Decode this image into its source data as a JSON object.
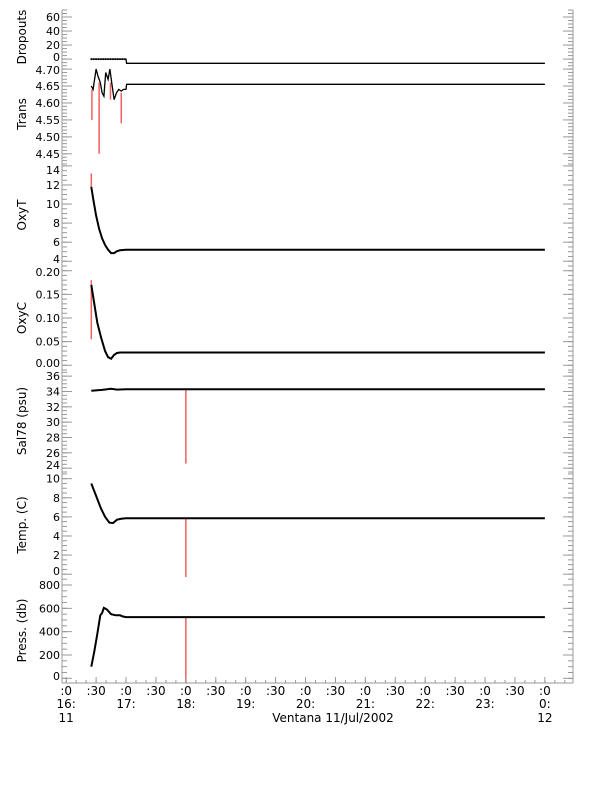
{
  "chart_data": {
    "type": "line",
    "title": "",
    "xlabel": "Ventana 11/Jul/2002",
    "xlim": [
      15.93,
      24.47
    ],
    "x_unit": "hours of 11/Jul/2002",
    "x_ticks": [
      {
        "x": 16.0,
        "top": ":0",
        "mid": "16:",
        "bottom": "11"
      },
      {
        "x": 16.5,
        "top": ":30",
        "mid": "",
        "bottom": ""
      },
      {
        "x": 17.0,
        "top": ":0",
        "mid": "17:",
        "bottom": ""
      },
      {
        "x": 17.5,
        "top": ":30",
        "mid": "",
        "bottom": ""
      },
      {
        "x": 18.0,
        "top": ":0",
        "mid": "18:",
        "bottom": ""
      },
      {
        "x": 18.5,
        "top": ":30",
        "mid": "",
        "bottom": ""
      },
      {
        "x": 19.0,
        "top": ":0",
        "mid": "19:",
        "bottom": ""
      },
      {
        "x": 19.5,
        "top": ":30",
        "mid": "",
        "bottom": ""
      },
      {
        "x": 20.0,
        "top": ":0",
        "mid": "20:",
        "bottom": ""
      },
      {
        "x": 20.5,
        "top": ":30",
        "mid": "",
        "bottom": ""
      },
      {
        "x": 21.0,
        "top": ":0",
        "mid": "21:",
        "bottom": ""
      },
      {
        "x": 21.5,
        "top": ":30",
        "mid": "",
        "bottom": ""
      },
      {
        "x": 22.0,
        "top": ":0",
        "mid": "22:",
        "bottom": ""
      },
      {
        "x": 22.5,
        "top": ":30",
        "mid": "",
        "bottom": ""
      },
      {
        "x": 23.0,
        "top": ":0",
        "mid": "23:",
        "bottom": ""
      },
      {
        "x": 23.5,
        "top": ":30",
        "mid": "",
        "bottom": ""
      },
      {
        "x": 24.0,
        "top": ":0",
        "mid": "0:",
        "bottom": "12"
      }
    ],
    "colors": {
      "line": "#000000",
      "raw": "#f06060"
    },
    "grid": false,
    "panels": [
      {
        "ylabel": "Dropouts",
        "ylim": [
          -7,
          70
        ],
        "yticks": [
          "0",
          "20",
          "40",
          "60"
        ],
        "ytick_values": [
          0,
          20,
          40,
          60
        ],
        "minor": 5,
        "series": {
          "x": [
            16.42,
            16.5,
            16.6,
            16.7,
            16.8,
            16.9,
            17.0,
            17.01,
            24.0
          ],
          "y": [
            0,
            0,
            0,
            0,
            0,
            0,
            0,
            -6,
            -6
          ]
        },
        "raw": []
      },
      {
        "ylabel": "Trans",
        "ylim": [
          4.42,
          4.715
        ],
        "yticks": [
          "4.45",
          "4.50",
          "4.55",
          "4.60",
          "4.65",
          "4.70"
        ],
        "ytick_values": [
          4.45,
          4.5,
          4.55,
          4.6,
          4.65,
          4.7
        ],
        "minor": 0.01,
        "series": {
          "x": [
            16.42,
            16.45,
            16.5,
            16.53,
            16.57,
            16.6,
            16.63,
            16.66,
            16.7,
            16.73,
            16.76,
            16.8,
            16.84,
            16.88,
            16.92,
            16.96,
            17.0,
            17.01,
            24.0
          ],
          "y": [
            4.65,
            4.64,
            4.7,
            4.68,
            4.66,
            4.63,
            4.62,
            4.69,
            4.67,
            4.7,
            4.66,
            4.61,
            4.63,
            4.64,
            4.635,
            4.64,
            4.64,
            4.655,
            4.655
          ]
        },
        "raw": [
          {
            "x": 16.43,
            "y0": 4.64,
            "y1": 4.55
          },
          {
            "x": 16.55,
            "y0": 4.66,
            "y1": 4.45
          },
          {
            "x": 16.74,
            "y0": 4.66,
            "y1": 4.61
          },
          {
            "x": 16.92,
            "y0": 4.63,
            "y1": 4.54
          }
        ]
      },
      {
        "ylabel": "OxyT",
        "ylim": [
          3.5,
          14.2
        ],
        "yticks": [
          "4",
          "6",
          "8",
          "10",
          "12",
          "14"
        ],
        "ytick_values": [
          4,
          6,
          8,
          10,
          12,
          14
        ],
        "minor": 0.5,
        "series": {
          "x": [
            16.42,
            16.45,
            16.5,
            16.55,
            16.6,
            16.65,
            16.7,
            16.75,
            16.8,
            16.85,
            16.9,
            17.0,
            24.0
          ],
          "y": [
            11.8,
            10.6,
            8.8,
            7.4,
            6.4,
            5.7,
            5.2,
            4.85,
            4.85,
            5.05,
            5.15,
            5.2,
            5.2
          ]
        },
        "raw": [
          {
            "x": 16.42,
            "y0": 11.8,
            "y1": 13.2
          }
        ]
      },
      {
        "ylabel": "OxyC",
        "ylim": [
          -0.01,
          0.21
        ],
        "yticks": [
          "0.00",
          "0.05",
          "0.10",
          "0.15",
          "0.20"
        ],
        "ytick_values": [
          0,
          0.05,
          0.1,
          0.15,
          0.2
        ],
        "minor": 0.01,
        "series": {
          "x": [
            16.42,
            16.47,
            16.52,
            16.58,
            16.65,
            16.7,
            16.75,
            16.8,
            16.85,
            16.9,
            17.0,
            24.0
          ],
          "y": [
            0.17,
            0.13,
            0.09,
            0.06,
            0.03,
            0.017,
            0.014,
            0.022,
            0.026,
            0.027,
            0.027,
            0.027
          ]
        },
        "raw": [
          {
            "x": 16.42,
            "y0": 0.055,
            "y1": 0.18
          }
        ]
      },
      {
        "ylabel": "Sal78 (psu)",
        "ylim": [
          23.5,
          36.8
        ],
        "yticks": [
          "24",
          "26",
          "28",
          "30",
          "32",
          "34",
          "36"
        ],
        "ytick_values": [
          24,
          26,
          28,
          30,
          32,
          34,
          36
        ],
        "minor": 0.5,
        "series": {
          "x": [
            16.42,
            16.6,
            16.75,
            16.85,
            17.0,
            24.0
          ],
          "y": [
            34.1,
            34.2,
            34.35,
            34.25,
            34.3,
            34.3
          ]
        },
        "raw": [
          {
            "x": 18.0,
            "y0": 34.3,
            "y1": 24.6
          }
        ]
      },
      {
        "ylabel": "Temp. (C)",
        "ylim": [
          -0.4,
          10.7
        ],
        "yticks": [
          "0",
          "2",
          "4",
          "6",
          "8",
          "10"
        ],
        "ytick_values": [
          0,
          2,
          4,
          6,
          8,
          10
        ],
        "minor": 0.5,
        "series": {
          "x": [
            16.42,
            16.5,
            16.58,
            16.65,
            16.72,
            16.78,
            16.85,
            16.92,
            17.0,
            24.0
          ],
          "y": [
            9.5,
            8.2,
            6.9,
            6.0,
            5.4,
            5.35,
            5.7,
            5.8,
            5.85,
            5.85
          ]
        },
        "raw": [
          {
            "x": 18.0,
            "y0": 5.85,
            "y1": -0.3
          }
        ]
      },
      {
        "ylabel": "Press. (db)",
        "ylim": [
          -40,
          860
        ],
        "yticks": [
          "0",
          "200",
          "400",
          "600",
          "800"
        ],
        "ytick_values": [
          0,
          200,
          400,
          600,
          800
        ],
        "minor": 50,
        "series": {
          "x": [
            16.42,
            16.47,
            16.52,
            16.57,
            16.6,
            16.63,
            16.68,
            16.75,
            16.83,
            16.9,
            16.95,
            17.0,
            24.0
          ],
          "y": [
            100,
            230,
            380,
            540,
            560,
            605,
            590,
            550,
            540,
            540,
            530,
            525,
            525
          ]
        },
        "raw": [
          {
            "x": 18.0,
            "y0": 525,
            "y1": -40
          }
        ]
      }
    ]
  }
}
